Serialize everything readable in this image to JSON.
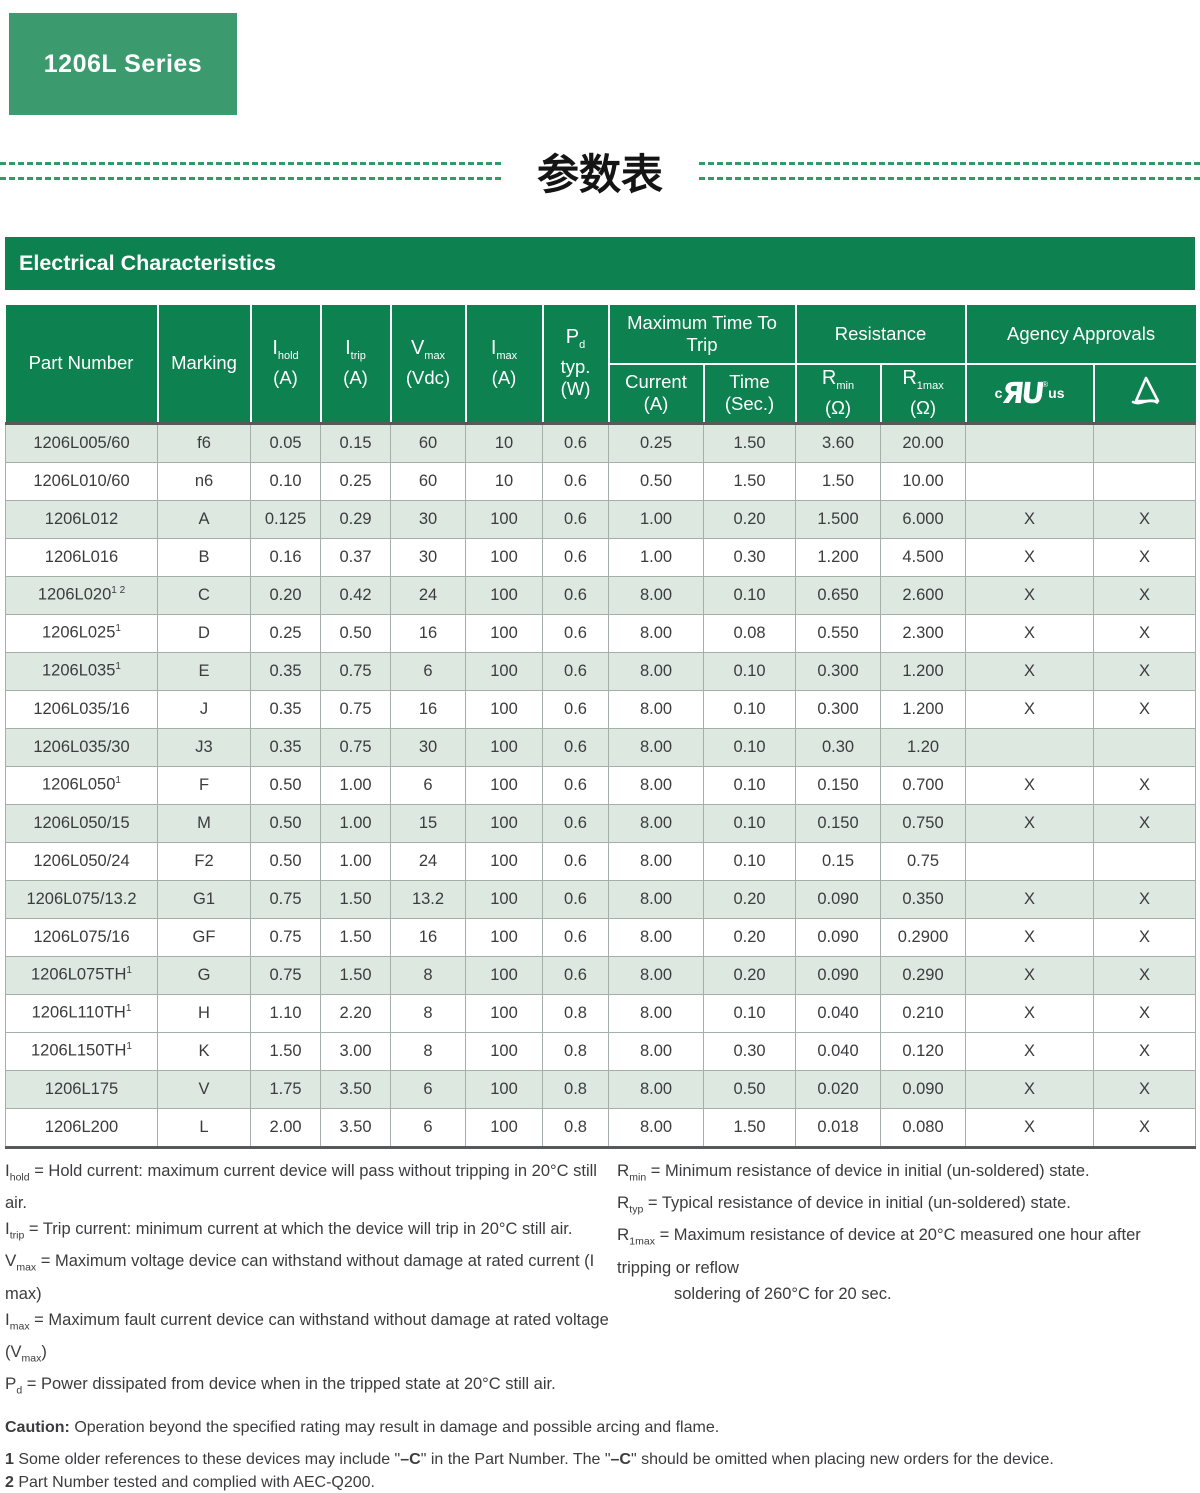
{
  "colors": {
    "badge_green": "#3b9b6e",
    "banner_green": "#0e8150",
    "row_shade": "#dde8e1",
    "dash_green": "#2f9c68"
  },
  "header": {
    "series": "1206L Series",
    "title_cn": "参数表"
  },
  "banner": {
    "label": "Electrical Characteristics"
  },
  "table": {
    "header": {
      "part_number": "Part Number",
      "marking": "Marking",
      "ihold": {
        "base": "I",
        "sub": "hold",
        "unit": "(A)"
      },
      "itrip": {
        "base": "I",
        "sub": "trip",
        "unit": "(A)"
      },
      "vmax": {
        "base": "V",
        "sub": "max",
        "unit": "(Vdc)"
      },
      "imax": {
        "base": "I",
        "sub": "max",
        "unit": "(A)"
      },
      "pd": {
        "base": "P",
        "sub": "d",
        "line2": "typ.",
        "unit": "(W)"
      },
      "max_time_group": "Maximum Time To Trip",
      "trip_current": {
        "label": "Current",
        "unit": "(A)"
      },
      "trip_time": {
        "label": "Time",
        "unit": "(Sec.)"
      },
      "resistance_group": "Resistance",
      "rmin": {
        "base": "R",
        "sub": "min",
        "unit": "(Ω)"
      },
      "r1max": {
        "base": "R",
        "sub": "1max",
        "unit": "(Ω)"
      },
      "agency_group": "Agency Approvals",
      "ul": {
        "prefix": "c",
        "core": "ЯU",
        "reg": "®",
        "suffix": "us"
      }
    },
    "rows": [
      {
        "part": "1206L005/60",
        "sup": "",
        "marking": "f6",
        "ihold": "0.05",
        "itrip": "0.15",
        "vmax": "60",
        "imax": "10",
        "pd": "0.6",
        "trip_current": "0.25",
        "trip_time": "1.50",
        "rmin": "3.60",
        "r1max": "20.00",
        "ul": "",
        "tri": "",
        "shaded": true
      },
      {
        "part": "1206L010/60",
        "sup": "",
        "marking": "n6",
        "ihold": "0.10",
        "itrip": "0.25",
        "vmax": "60",
        "imax": "10",
        "pd": "0.6",
        "trip_current": "0.50",
        "trip_time": "1.50",
        "rmin": "1.50",
        "r1max": "10.00",
        "ul": "",
        "tri": "",
        "shaded": false
      },
      {
        "part": "1206L012",
        "sup": "",
        "marking": "A",
        "ihold": "0.125",
        "itrip": "0.29",
        "vmax": "30",
        "imax": "100",
        "pd": "0.6",
        "trip_current": "1.00",
        "trip_time": "0.20",
        "rmin": "1.500",
        "r1max": "6.000",
        "ul": "X",
        "tri": "X",
        "shaded": true
      },
      {
        "part": "1206L016",
        "sup": "",
        "marking": "B",
        "ihold": "0.16",
        "itrip": "0.37",
        "vmax": "30",
        "imax": "100",
        "pd": "0.6",
        "trip_current": "1.00",
        "trip_time": "0.30",
        "rmin": "1.200",
        "r1max": "4.500",
        "ul": "X",
        "tri": "X",
        "shaded": false
      },
      {
        "part": "1206L020",
        "sup": "1 2",
        "marking": "C",
        "ihold": "0.20",
        "itrip": "0.42",
        "vmax": "24",
        "imax": "100",
        "pd": "0.6",
        "trip_current": "8.00",
        "trip_time": "0.10",
        "rmin": "0.650",
        "r1max": "2.600",
        "ul": "X",
        "tri": "X",
        "shaded": true
      },
      {
        "part": "1206L025",
        "sup": "1",
        "marking": "D",
        "ihold": "0.25",
        "itrip": "0.50",
        "vmax": "16",
        "imax": "100",
        "pd": "0.6",
        "trip_current": "8.00",
        "trip_time": "0.08",
        "rmin": "0.550",
        "r1max": "2.300",
        "ul": "X",
        "tri": "X",
        "shaded": false
      },
      {
        "part": "1206L035",
        "sup": "1",
        "marking": "E",
        "ihold": "0.35",
        "itrip": "0.75",
        "vmax": "6",
        "imax": "100",
        "pd": "0.6",
        "trip_current": "8.00",
        "trip_time": "0.10",
        "rmin": "0.300",
        "r1max": "1.200",
        "ul": "X",
        "tri": "X",
        "shaded": true
      },
      {
        "part": "1206L035/16",
        "sup": "",
        "marking": "J",
        "ihold": "0.35",
        "itrip": "0.75",
        "vmax": "16",
        "imax": "100",
        "pd": "0.6",
        "trip_current": "8.00",
        "trip_time": "0.10",
        "rmin": "0.300",
        "r1max": "1.200",
        "ul": "X",
        "tri": "X",
        "shaded": false
      },
      {
        "part": "1206L035/30",
        "sup": "",
        "marking": "J3",
        "ihold": "0.35",
        "itrip": "0.75",
        "vmax": "30",
        "imax": "100",
        "pd": "0.6",
        "trip_current": "8.00",
        "trip_time": "0.10",
        "rmin": "0.30",
        "r1max": "1.20",
        "ul": "",
        "tri": "",
        "shaded": true
      },
      {
        "part": "1206L050",
        "sup": "1",
        "marking": "F",
        "ihold": "0.50",
        "itrip": "1.00",
        "vmax": "6",
        "imax": "100",
        "pd": "0.6",
        "trip_current": "8.00",
        "trip_time": "0.10",
        "rmin": "0.150",
        "r1max": "0.700",
        "ul": "X",
        "tri": "X",
        "shaded": false
      },
      {
        "part": "1206L050/15",
        "sup": "",
        "marking": "M",
        "ihold": "0.50",
        "itrip": "1.00",
        "vmax": "15",
        "imax": "100",
        "pd": "0.6",
        "trip_current": "8.00",
        "trip_time": "0.10",
        "rmin": "0.150",
        "r1max": "0.750",
        "ul": "X",
        "tri": "X",
        "shaded": true
      },
      {
        "part": "1206L050/24",
        "sup": "",
        "marking": "F2",
        "ihold": "0.50",
        "itrip": "1.00",
        "vmax": "24",
        "imax": "100",
        "pd": "0.6",
        "trip_current": "8.00",
        "trip_time": "0.10",
        "rmin": "0.15",
        "r1max": "0.75",
        "ul": "",
        "tri": "",
        "shaded": false
      },
      {
        "part": "1206L075/13.2",
        "sup": "",
        "marking": "G1",
        "ihold": "0.75",
        "itrip": "1.50",
        "vmax": "13.2",
        "imax": "100",
        "pd": "0.6",
        "trip_current": "8.00",
        "trip_time": "0.20",
        "rmin": "0.090",
        "r1max": "0.350",
        "ul": "X",
        "tri": "X",
        "shaded": true
      },
      {
        "part": "1206L075/16",
        "sup": "",
        "marking": "GF",
        "ihold": "0.75",
        "itrip": "1.50",
        "vmax": "16",
        "imax": "100",
        "pd": "0.6",
        "trip_current": "8.00",
        "trip_time": "0.20",
        "rmin": "0.090",
        "r1max": "0.2900",
        "ul": "X",
        "tri": "X",
        "shaded": false
      },
      {
        "part": "1206L075TH",
        "sup": "1",
        "marking": "G",
        "ihold": "0.75",
        "itrip": "1.50",
        "vmax": "8",
        "imax": "100",
        "pd": "0.6",
        "trip_current": "8.00",
        "trip_time": "0.20",
        "rmin": "0.090",
        "r1max": "0.290",
        "ul": "X",
        "tri": "X",
        "shaded": true
      },
      {
        "part": "1206L110TH",
        "sup": "1",
        "marking": "H",
        "ihold": "1.10",
        "itrip": "2.20",
        "vmax": "8",
        "imax": "100",
        "pd": "0.8",
        "trip_current": "8.00",
        "trip_time": "0.10",
        "rmin": "0.040",
        "r1max": "0.210",
        "ul": "X",
        "tri": "X",
        "shaded": false
      },
      {
        "part": "1206L150TH",
        "sup": "1",
        "marking": "K",
        "ihold": "1.50",
        "itrip": "3.00",
        "vmax": "8",
        "imax": "100",
        "pd": "0.8",
        "trip_current": "8.00",
        "trip_time": "0.30",
        "rmin": "0.040",
        "r1max": "0.120",
        "ul": "X",
        "tri": "X",
        "shaded": false
      },
      {
        "part": "1206L175",
        "sup": "",
        "marking": "V",
        "ihold": "1.75",
        "itrip": "3.50",
        "vmax": "6",
        "imax": "100",
        "pd": "0.8",
        "trip_current": "8.00",
        "trip_time": "0.50",
        "rmin": "0.020",
        "r1max": "0.090",
        "ul": "X",
        "tri": "X",
        "shaded": true
      },
      {
        "part": "1206L200",
        "sup": "",
        "marking": "L",
        "ihold": "2.00",
        "itrip": "3.50",
        "vmax": "6",
        "imax": "100",
        "pd": "0.8",
        "trip_current": "8.00",
        "trip_time": "1.50",
        "rmin": "0.018",
        "r1max": "0.080",
        "ul": "X",
        "tri": "X",
        "shaded": false
      }
    ]
  },
  "footnotes": {
    "left": [
      {
        "sym": "I",
        "sub": "hold",
        "text": "= Hold current: maximum current device will pass without tripping in 20°C still air."
      },
      {
        "sym": "I",
        "sub": "trip",
        "text": "= Trip current: minimum current at which the device will trip in 20°C still air."
      },
      {
        "sym": "V",
        "sub": "max",
        "text": "= Maximum voltage device can withstand without damage at rated current (I max)"
      },
      {
        "sym": "I",
        "sub": "max",
        "text": "= Maximum fault current device can withstand without damage at rated voltage (V",
        "tail_sub": "max",
        "tail_text": ")"
      },
      {
        "sym": "P",
        "sub": "d",
        "text": "= Power dissipated from device when in the tripped state at 20°C still air."
      }
    ],
    "right": [
      {
        "sym": "R",
        "sub": "min",
        "text": "= Minimum resistance of device in initial (un-soldered) state."
      },
      {
        "sym": "R",
        "sub": "typ",
        "text": "= Typical resistance of device in initial (un-soldered) state."
      },
      {
        "sym": "R",
        "sub": "1max",
        "text": "= Maximum resistance of device at 20°C measured one hour after tripping or reflow",
        "text2": "soldering of 260°C for 20 sec."
      }
    ]
  },
  "footer": {
    "caution_label": "Caution:",
    "caution_text": "Operation beyond the specified rating may result in damage and possible arcing and flame.",
    "note1": {
      "num": "1",
      "t1": "Some older references to these devices may include \"",
      "b1": "–C",
      "t2": "\" in the Part Number. The \"",
      "b2": "–C",
      "t3": "\" should be omitted when placing new orders for the device."
    },
    "note2": {
      "num": "2",
      "text": "Part Number tested and complied with AEC-Q200."
    }
  }
}
